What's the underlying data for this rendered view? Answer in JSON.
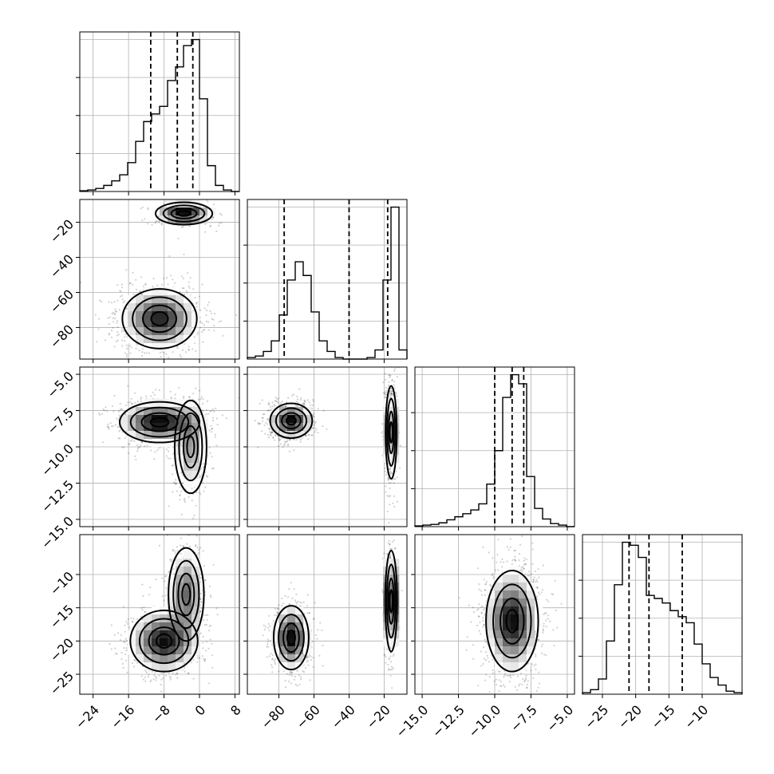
{
  "chart_data": {
    "type": "corner",
    "params": [
      {
        "range": [
          -27,
          9
        ],
        "ticks": [
          -24,
          -16,
          -8,
          0,
          8
        ],
        "tick_labels": [
          "−24",
          "−16",
          "−8",
          "0",
          "8"
        ],
        "quantiles": [
          -11,
          -5,
          -1.5
        ]
      },
      {
        "range": [
          -98,
          -7
        ],
        "ticks": [
          -80,
          -60,
          -40,
          -20
        ],
        "tick_labels": [
          "−80",
          "−60",
          "−40",
          "−20"
        ],
        "quantiles": [
          -77,
          -40,
          -18
        ]
      },
      {
        "range": [
          -15.5,
          -4.5
        ],
        "ticks": [
          -15.0,
          -12.5,
          -10.0,
          -7.5,
          -5.0
        ],
        "tick_labels": [
          "−15.0",
          "−12.5",
          "−10.0",
          "−7.5",
          "−5.0"
        ],
        "quantiles": [
          -10.0,
          -8.8,
          -8.0
        ]
      },
      {
        "range": [
          -28,
          -4
        ],
        "ticks": [
          -25,
          -20,
          -15,
          -10
        ],
        "tick_labels": [
          "−25",
          "−20",
          "−15",
          "−10"
        ],
        "quantiles": [
          -21,
          -18,
          -13
        ]
      }
    ],
    "histograms": [
      {
        "values": [
          0.005,
          0.01,
          0.02,
          0.04,
          0.07,
          0.11,
          0.19,
          0.33,
          0.46,
          0.51,
          0.56,
          0.73,
          0.82,
          0.96,
          1.0,
          0.61,
          0.17,
          0.04,
          0.01,
          0.0
        ]
      },
      {
        "values": [
          0.01,
          0.02,
          0.05,
          0.12,
          0.29,
          0.52,
          0.64,
          0.55,
          0.31,
          0.12,
          0.05,
          0.01,
          0.0,
          0.0,
          0.0,
          0.01,
          0.06,
          0.52,
          1.0,
          0.06
        ]
      },
      {
        "values": [
          0.005,
          0.01,
          0.015,
          0.025,
          0.045,
          0.065,
          0.085,
          0.11,
          0.15,
          0.28,
          0.5,
          0.85,
          1.0,
          0.94,
          0.33,
          0.12,
          0.05,
          0.02,
          0.01,
          0.0
        ]
      },
      {
        "values": [
          0.01,
          0.03,
          0.1,
          0.35,
          0.72,
          1.0,
          0.98,
          0.9,
          0.65,
          0.63,
          0.6,
          0.55,
          0.51,
          0.47,
          0.33,
          0.2,
          0.11,
          0.06,
          0.02,
          0.01
        ]
      }
    ],
    "blobs": [
      {
        "i": 1,
        "j": 0,
        "comps": [
          {
            "w": 0.25,
            "mx": -3.5,
            "my": -15,
            "sx": 3.2,
            "sy": 3.2
          },
          {
            "w": 0.75,
            "mx": -9,
            "my": -75,
            "sx": 4.2,
            "sy": 8.5
          }
        ]
      },
      {
        "i": 2,
        "j": 0,
        "comps": [
          {
            "w": 0.7,
            "mx": -9,
            "my": -8.3,
            "sx": 4.5,
            "sy": 0.7
          },
          {
            "w": 0.3,
            "mx": -2,
            "my": -10.0,
            "sx": 1.8,
            "sy": 1.6
          }
        ]
      },
      {
        "i": 2,
        "j": 1,
        "comps": [
          {
            "w": 0.6,
            "mx": -73,
            "my": -8.2,
            "sx": 6,
            "sy": 0.6
          },
          {
            "w": 0.4,
            "mx": -16,
            "my": -9.0,
            "sx": 1.6,
            "sy": 1.6
          }
        ]
      },
      {
        "i": 3,
        "j": 0,
        "comps": [
          {
            "w": 0.65,
            "mx": -8,
            "my": -20,
            "sx": 3.8,
            "sy": 2.3
          },
          {
            "w": 0.35,
            "mx": -3,
            "my": -13,
            "sx": 2.0,
            "sy": 3.5
          }
        ]
      },
      {
        "i": 3,
        "j": 1,
        "comps": [
          {
            "w": 0.55,
            "mx": -73,
            "my": -19.5,
            "sx": 5,
            "sy": 2.4
          },
          {
            "w": 0.45,
            "mx": -16,
            "my": -14,
            "sx": 1.7,
            "sy": 3.8
          }
        ]
      },
      {
        "i": 3,
        "j": 2,
        "comps": [
          {
            "w": 1.0,
            "mx": -8.8,
            "my": -17,
            "sx": 0.9,
            "sy": 3.8
          }
        ]
      }
    ],
    "grid": true
  }
}
